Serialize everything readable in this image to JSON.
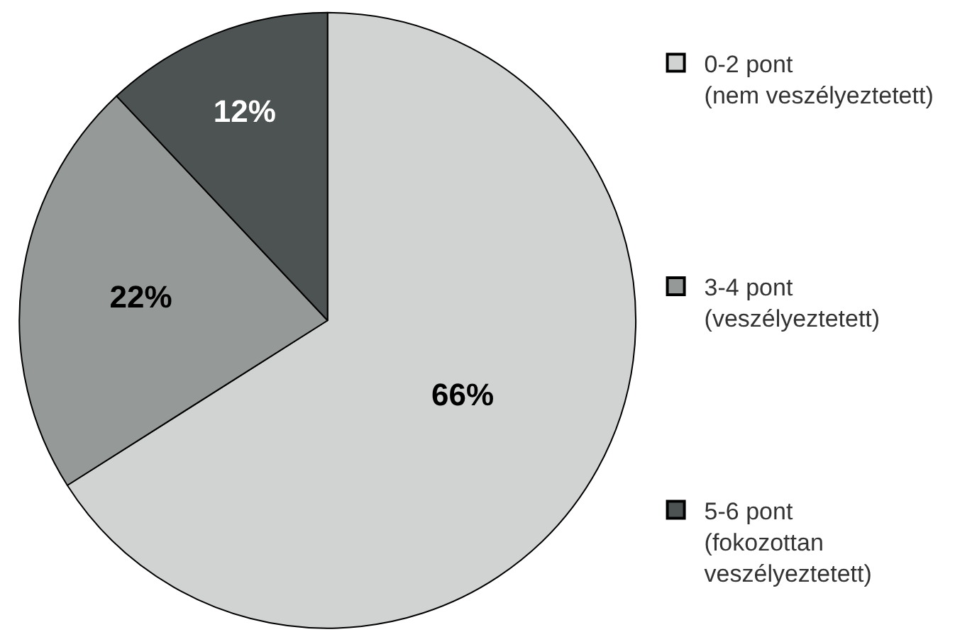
{
  "chart_data": {
    "type": "pie",
    "categories": [
      "0-2 pont\n(nem veszélyeztetett)",
      "3-4 pont\n(veszélyeztetett)",
      "5-6 pont\n(fokozottan\nveszélyeztetett)"
    ],
    "values": [
      66,
      22,
      12
    ],
    "colors": [
      "#d0d3d2",
      "#959998",
      "#4d5252"
    ],
    "value_labels": [
      "66%",
      "22%",
      "12%"
    ],
    "legend": "right"
  }
}
